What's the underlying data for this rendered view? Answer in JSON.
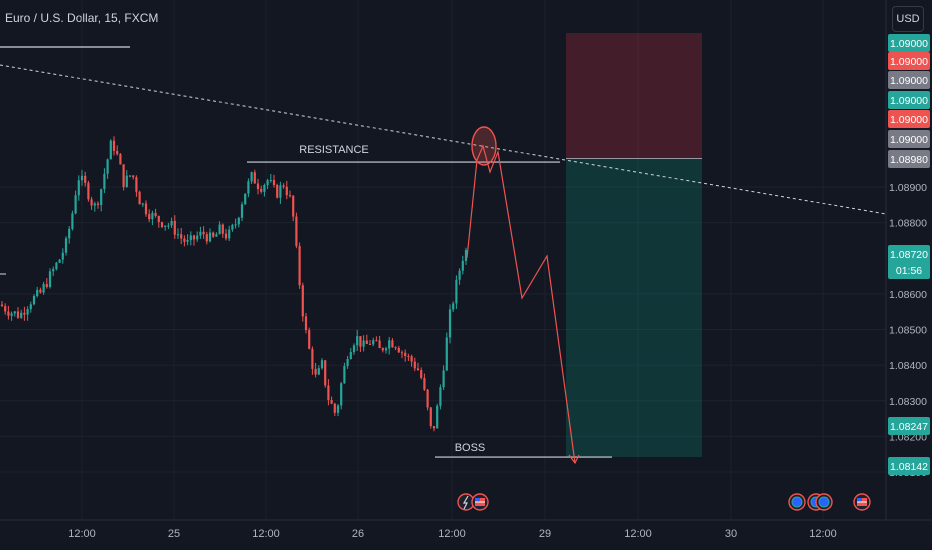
{
  "header": {
    "title": "Euro / U.S. Dollar, 15, FXCM",
    "currency": "USD"
  },
  "colors": {
    "background": "#131722",
    "up": "#26a69a",
    "down": "#ef5350",
    "stop_zone": "#f2364533",
    "target_zone": "#08998133",
    "axis_text": "#b2b5be",
    "grid": "#1e222d"
  },
  "chart_data": {
    "type": "candlestick",
    "x_ticks": [
      "12:00",
      "25",
      "12:00",
      "26",
      "12:00",
      "29",
      "12:00",
      "30",
      "12:00"
    ],
    "y_ticks": [
      "1.08900",
      "1.08800",
      "1.08600",
      "1.08500",
      "1.08400",
      "1.08300",
      "1.08200",
      "1.08100"
    ],
    "ylim": [
      1.0809,
      1.0902
    ],
    "price_badges": [
      {
        "label": "1.09000",
        "color": "#26a69a"
      },
      {
        "label": "1.09000",
        "color": "#ef5350"
      },
      {
        "label": "1.09000",
        "color": "#787b86"
      },
      {
        "label": "1.09000",
        "color": "#26a69a"
      },
      {
        "label": "1.09000",
        "color": "#ef5350"
      },
      {
        "label": "1.09000",
        "color": "#787b86"
      },
      {
        "label": "1.08980",
        "color": "#787b86"
      },
      {
        "label": "1.08720",
        "color": "#26a69a"
      },
      {
        "label": "01:56",
        "color": "#26a69a"
      },
      {
        "label": "1.08247",
        "color": "#26a69a"
      },
      {
        "label": "1.08142",
        "color": "#26a69a"
      }
    ],
    "annotations": [
      {
        "text": "RESISTANCE",
        "price": 1.0897
      },
      {
        "text": "BOSS",
        "price": 1.08142
      }
    ],
    "position": {
      "entry": 1.0898,
      "stop": 1.0904,
      "target": 1.08142
    }
  }
}
